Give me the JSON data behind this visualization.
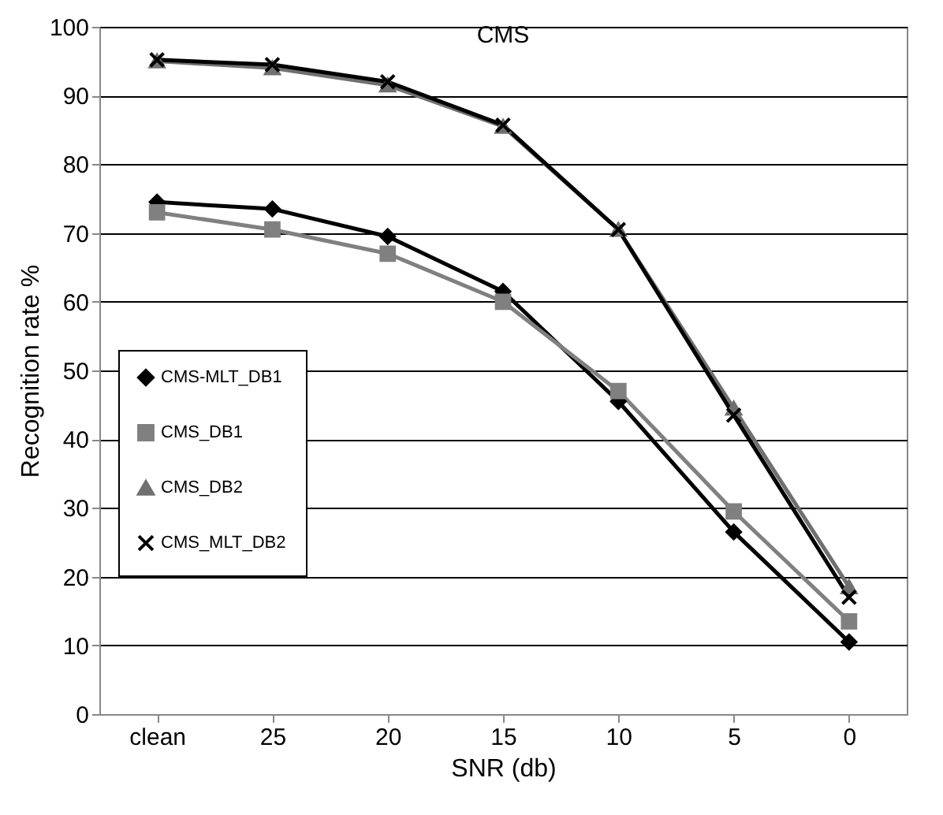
{
  "chart_data": {
    "type": "line",
    "title": "CMS",
    "xlabel": "SNR (db)",
    "ylabel": "Recognition rate %",
    "categories": [
      "clean",
      "25",
      "20",
      "15",
      "10",
      "5",
      "0"
    ],
    "series": [
      {
        "name": "CMS-MLT_DB1",
        "color": "#000000",
        "marker": "diamond",
        "values": [
          74.5,
          73.5,
          69.5,
          61.5,
          45.5,
          26.5,
          10.5
        ]
      },
      {
        "name": "CMS_DB1",
        "color": "#808080",
        "marker": "square",
        "values": [
          73,
          70.5,
          67,
          60,
          47,
          29.5,
          13.5
        ]
      },
      {
        "name": "CMS_DB2",
        "color": "#707070",
        "marker": "triangle",
        "values": [
          95,
          94,
          91.5,
          85.5,
          70.5,
          44.5,
          18.5
        ]
      },
      {
        "name": "CMS_MLT_DB2",
        "color": "#000000",
        "marker": "cross",
        "values": [
          95.2,
          94.5,
          92,
          85.7,
          70.5,
          43.5,
          17
        ]
      }
    ],
    "ylim": [
      0,
      100
    ],
    "yticks": [
      0,
      10,
      20,
      30,
      40,
      50,
      60,
      70,
      80,
      90,
      100
    ],
    "grid": "y",
    "legend": "left",
    "line_style": "solid"
  }
}
